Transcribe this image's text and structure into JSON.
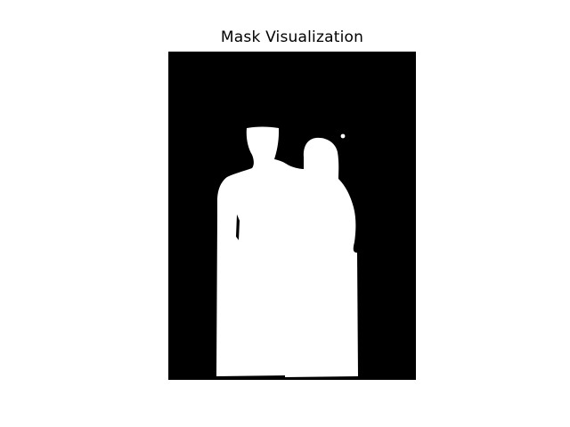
{
  "figure": {
    "title": "Mask Visualization"
  },
  "mask": {
    "background_color": "#000000",
    "foreground_color": "#ffffff",
    "description_hidden": true
  }
}
